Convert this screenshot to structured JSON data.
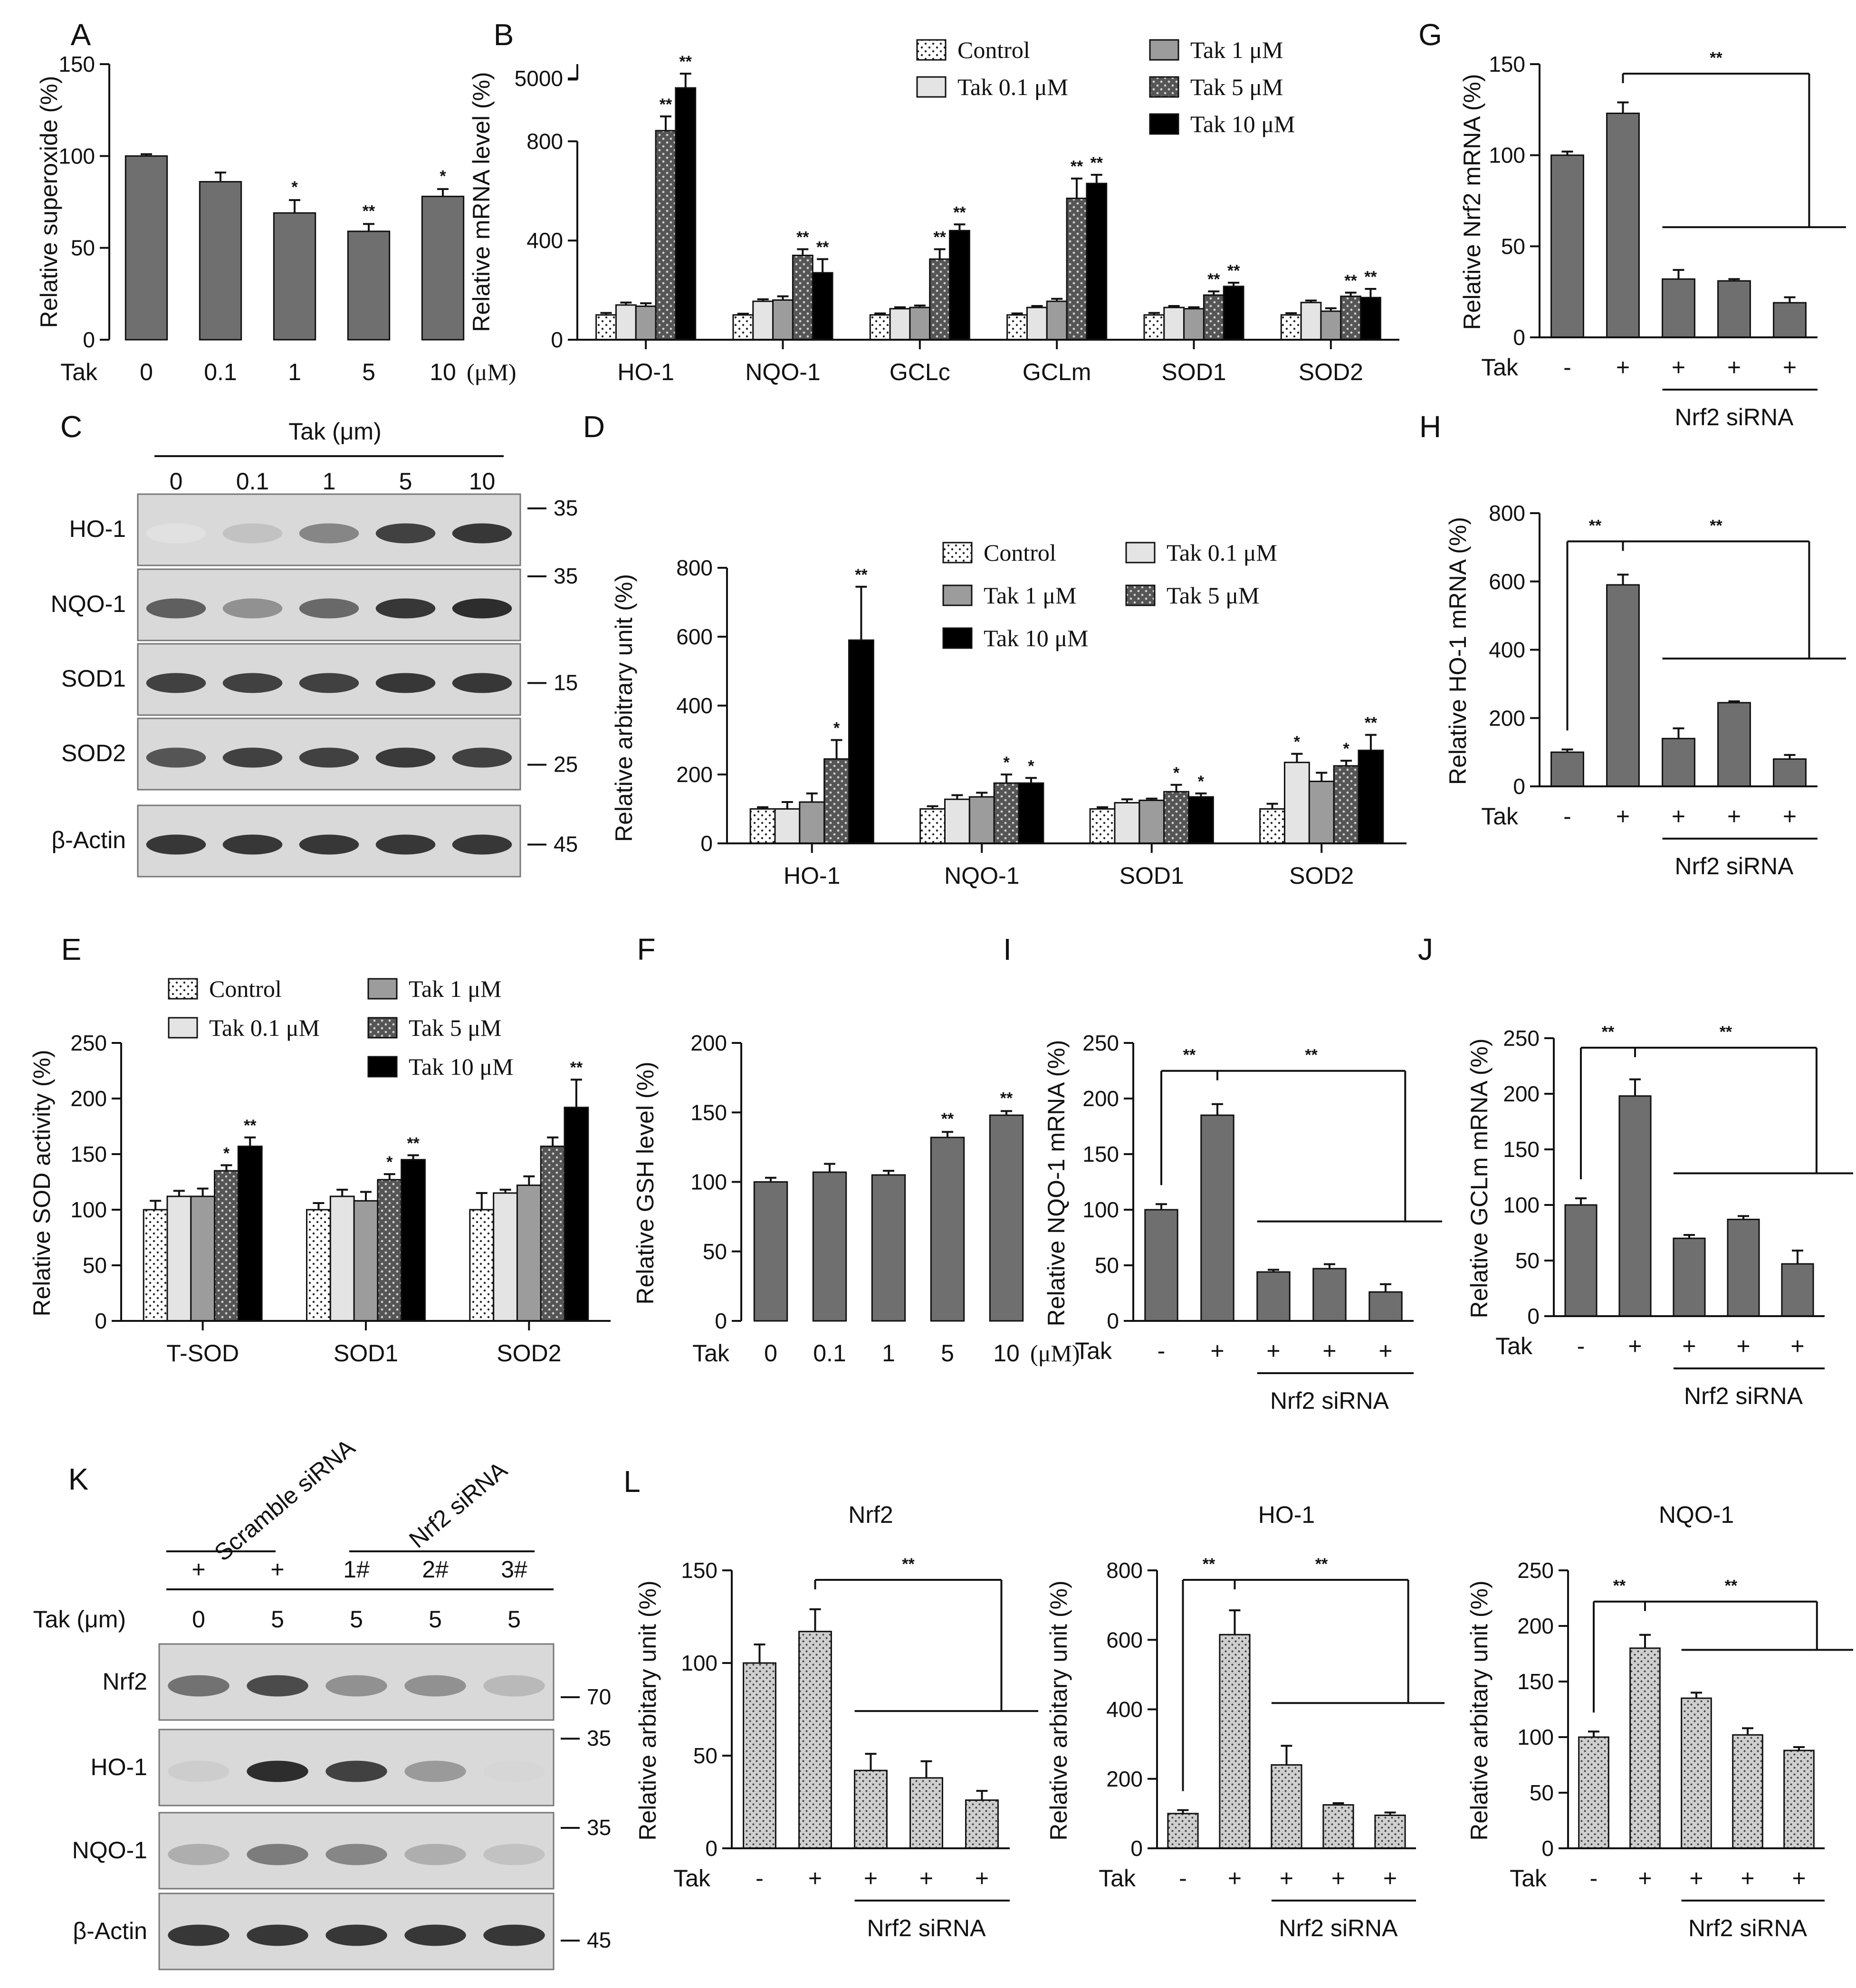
{
  "colors": {
    "control": "#ffffff",
    "t01": "#e4e4e4",
    "t1": "#9c9c9c",
    "t5": "#5a5a5a",
    "t10": "#000000",
    "grey": "#6f6f6f",
    "lgrey": "#bdbdbd",
    "line": "#111111"
  },
  "legend": {
    "control": "Control",
    "t01": "Tak 0.1 μM",
    "t1": "Tak 1 μM",
    "t5": "Tak 5 μM",
    "t10": "Tak 10 μM"
  },
  "common": {
    "tak": "Tak",
    "plus": "+",
    "minus": "-",
    "nrf2sirna": "Nrf2 siRNA",
    "uM": "(μM)",
    "tak_um": "Tak (μm)",
    "sig1": "*",
    "sig2": "**"
  },
  "chart_data": [
    {
      "id": "A",
      "type": "bar",
      "panel": "A",
      "ylabel": "Relative superoxide (%)",
      "ylim": [
        0,
        150
      ],
      "yticks": [
        0,
        50,
        100,
        150
      ],
      "categories": [
        "0",
        "0.1",
        "1",
        "5",
        "10"
      ],
      "values": [
        100,
        86,
        69,
        59,
        78
      ],
      "errors": [
        1,
        5,
        7,
        4,
        4
      ],
      "sig": [
        "",
        "",
        "*",
        "**",
        "*"
      ],
      "xcaption": "Tak",
      "unit": "(μM)"
    },
    {
      "id": "B",
      "type": "bar",
      "panel": "B",
      "ylabel": "Relative mRNA level (%)",
      "broken_axis": {
        "lower": [
          0,
          800
        ],
        "upper_tick": 5000
      },
      "yticks": [
        0,
        400,
        800,
        5000
      ],
      "categories": [
        "HO-1",
        "NQO-1",
        "GCLc",
        "GCLm",
        "SOD1",
        "SOD2"
      ],
      "series": [
        {
          "name": "Control",
          "values": [
            100,
            100,
            100,
            100,
            100,
            100
          ],
          "errors": [
            8,
            5,
            6,
            6,
            8,
            7
          ],
          "sig": [
            "",
            "",
            "",
            "",
            "",
            ""
          ]
        },
        {
          "name": "Tak 0.1 μM",
          "values": [
            140,
            155,
            125,
            130,
            130,
            150
          ],
          "errors": [
            10,
            8,
            6,
            6,
            6,
            8
          ],
          "sig": [
            "",
            "",
            "",
            "",
            "",
            ""
          ]
        },
        {
          "name": "Tak 1 μM",
          "values": [
            135,
            160,
            130,
            155,
            125,
            115
          ],
          "errors": [
            12,
            15,
            8,
            10,
            6,
            12
          ],
          "sig": [
            "",
            "",
            "",
            "",
            "",
            ""
          ]
        },
        {
          "name": "Tak 5 μM",
          "values": [
            4200,
            340,
            325,
            570,
            180,
            175
          ],
          "errors": [
            200,
            25,
            40,
            80,
            15,
            15
          ],
          "sig": [
            "**",
            "**",
            "**",
            "**",
            "**",
            "**"
          ]
        },
        {
          "name": "Tak 10 μM",
          "values": [
            4700,
            270,
            440,
            630,
            215,
            170
          ],
          "errors": [
            150,
            55,
            25,
            35,
            15,
            35
          ],
          "sig": [
            "**",
            "**",
            "**",
            "**",
            "**",
            "**"
          ]
        }
      ]
    },
    {
      "id": "D",
      "type": "bar",
      "panel": "D",
      "ylabel": "Relative arbitrary unit (%)",
      "ylim": [
        0,
        800
      ],
      "yticks": [
        0,
        200,
        400,
        600,
        800
      ],
      "categories": [
        "HO-1",
        "NQO-1",
        "SOD1",
        "SOD2"
      ],
      "series": [
        {
          "name": "Control",
          "values": [
            100,
            100,
            100,
            100
          ],
          "errors": [
            5,
            8,
            5,
            15
          ],
          "sig": [
            "",
            "",
            "",
            ""
          ]
        },
        {
          "name": "Tak 0.1 μM",
          "values": [
            100,
            128,
            118,
            235
          ],
          "errors": [
            20,
            12,
            10,
            25
          ],
          "sig": [
            "",
            "",
            "",
            "*"
          ]
        },
        {
          "name": "Tak 1 μM",
          "values": [
            120,
            135,
            125,
            180
          ],
          "errors": [
            25,
            12,
            5,
            25
          ],
          "sig": [
            "",
            "",
            "",
            ""
          ]
        },
        {
          "name": "Tak 5 μM",
          "values": [
            245,
            175,
            150,
            225
          ],
          "errors": [
            55,
            25,
            20,
            15
          ],
          "sig": [
            "*",
            "*",
            "*",
            "*"
          ]
        },
        {
          "name": "Tak 10 μM",
          "values": [
            590,
            175,
            135,
            270
          ],
          "errors": [
            155,
            15,
            10,
            45
          ],
          "sig": [
            "**",
            "*",
            "*",
            "**"
          ]
        }
      ]
    },
    {
      "id": "E",
      "type": "bar",
      "panel": "E",
      "ylabel": "Relative SOD activity (%)",
      "ylim": [
        0,
        250
      ],
      "yticks": [
        0,
        50,
        100,
        150,
        200,
        250
      ],
      "categories": [
        "T-SOD",
        "SOD1",
        "SOD2"
      ],
      "series": [
        {
          "name": "Control",
          "values": [
            100,
            100,
            100
          ],
          "errors": [
            8,
            6,
            15
          ],
          "sig": [
            "",
            "",
            ""
          ]
        },
        {
          "name": "Tak 0.1 μM",
          "values": [
            112,
            112,
            115
          ],
          "errors": [
            5,
            6,
            3
          ],
          "sig": [
            "",
            "",
            ""
          ]
        },
        {
          "name": "Tak 1 μM",
          "values": [
            112,
            108,
            122
          ],
          "errors": [
            7,
            8,
            8
          ],
          "sig": [
            "",
            "",
            ""
          ]
        },
        {
          "name": "Tak 5 μM",
          "values": [
            135,
            127,
            157
          ],
          "errors": [
            5,
            5,
            8
          ],
          "sig": [
            "*",
            "*",
            ""
          ]
        },
        {
          "name": "Tak 10 μM",
          "values": [
            157,
            145,
            192
          ],
          "errors": [
            8,
            4,
            25
          ],
          "sig": [
            "**",
            "**",
            "**"
          ]
        }
      ]
    },
    {
      "id": "F",
      "type": "bar",
      "panel": "F",
      "ylabel": "Relative GSH level (%)",
      "ylim": [
        0,
        200
      ],
      "yticks": [
        0,
        50,
        100,
        150,
        200
      ],
      "categories": [
        "0",
        "0.1",
        "1",
        "5",
        "10"
      ],
      "values": [
        100,
        107,
        105,
        132,
        148
      ],
      "errors": [
        3,
        6,
        3,
        4,
        3
      ],
      "sig": [
        "",
        "",
        "",
        "**",
        "**"
      ],
      "xcaption": "Tak",
      "unit": "(μM)"
    },
    {
      "id": "G",
      "type": "bar",
      "panel": "G",
      "ylabel": "Relative Nrf2 mRNA (%)",
      "ylim": [
        0,
        150
      ],
      "yticks": [
        0,
        50,
        100,
        150
      ],
      "categories": [
        "-",
        "+",
        "+",
        "+",
        "+"
      ],
      "values": [
        100,
        123,
        32,
        31,
        19
      ],
      "errors": [
        2,
        6,
        5,
        1,
        3
      ],
      "sig_brackets": [
        {
          "label": "**",
          "type": "group"
        }
      ]
    },
    {
      "id": "H",
      "type": "bar",
      "panel": "H",
      "ylabel": "Relative HO-1 mRNA (%)",
      "ylim": [
        0,
        800
      ],
      "yticks": [
        0,
        200,
        400,
        600,
        800
      ],
      "categories": [
        "-",
        "+",
        "+",
        "+",
        "+"
      ],
      "values": [
        100,
        590,
        140,
        245,
        80
      ],
      "errors": [
        8,
        30,
        30,
        4,
        12
      ],
      "sig_brackets": [
        {
          "label": "**",
          "type": "pair"
        },
        {
          "label": "**",
          "type": "group"
        }
      ]
    },
    {
      "id": "I",
      "type": "bar",
      "panel": "I",
      "ylabel": "Relative NQO-1 mRNA (%)",
      "ylim": [
        0,
        250
      ],
      "yticks": [
        0,
        50,
        100,
        150,
        200,
        250
      ],
      "categories": [
        "-",
        "+",
        "+",
        "+",
        "+"
      ],
      "values": [
        100,
        185,
        44,
        47,
        26
      ],
      "errors": [
        5,
        10,
        2,
        4,
        7
      ],
      "sig_brackets": [
        {
          "label": "**",
          "type": "pair"
        },
        {
          "label": "**",
          "type": "group"
        }
      ]
    },
    {
      "id": "J",
      "type": "bar",
      "panel": "J",
      "ylabel": "Relative GCLm mRNA (%)",
      "ylim": [
        0,
        250
      ],
      "yticks": [
        0,
        50,
        100,
        150,
        200,
        250
      ],
      "categories": [
        "-",
        "+",
        "+",
        "+",
        "+"
      ],
      "values": [
        100,
        198,
        70,
        87,
        47
      ],
      "errors": [
        6,
        15,
        3,
        3,
        12
      ],
      "sig_brackets": [
        {
          "label": "**",
          "type": "pair"
        },
        {
          "label": "**",
          "type": "group"
        }
      ]
    },
    {
      "id": "L1",
      "type": "bar",
      "panel": "L",
      "title": "Nrf2",
      "ylabel": "Relative arbitary unit (%)",
      "ylim": [
        0,
        150
      ],
      "yticks": [
        0,
        50,
        100,
        150
      ],
      "categories": [
        "-",
        "+",
        "+",
        "+",
        "+"
      ],
      "values": [
        100,
        117,
        42,
        38,
        26
      ],
      "errors": [
        10,
        12,
        9,
        9,
        5
      ],
      "sig_brackets": [
        {
          "label": "**",
          "type": "group"
        }
      ]
    },
    {
      "id": "L2",
      "type": "bar",
      "panel": "",
      "title": "HO-1",
      "ylabel": "Relative arbitary unit (%)",
      "ylim": [
        0,
        800
      ],
      "yticks": [
        0,
        200,
        400,
        600,
        800
      ],
      "categories": [
        "-",
        "+",
        "+",
        "+",
        "+"
      ],
      "values": [
        100,
        615,
        240,
        125,
        95
      ],
      "errors": [
        10,
        70,
        55,
        5,
        8
      ],
      "sig_brackets": [
        {
          "label": "**",
          "type": "pair"
        },
        {
          "label": "**",
          "type": "group"
        }
      ]
    },
    {
      "id": "L3",
      "type": "bar",
      "panel": "",
      "title": "NQO-1",
      "ylabel": "Relative arbitary unit (%)",
      "ylim": [
        0,
        250
      ],
      "yticks": [
        0,
        50,
        100,
        150,
        200,
        250
      ],
      "categories": [
        "-",
        "+",
        "+",
        "+",
        "+"
      ],
      "values": [
        100,
        180,
        135,
        102,
        88
      ],
      "errors": [
        5,
        12,
        5,
        6,
        3
      ],
      "sig_brackets": [
        {
          "label": "**",
          "type": "pair"
        },
        {
          "label": "**",
          "type": "group"
        }
      ]
    }
  ],
  "blotC": {
    "panel": "C",
    "header": "Tak (μm)",
    "lanes": [
      "0",
      "0.1",
      "1",
      "5",
      "10"
    ],
    "rows": [
      {
        "label": "HO-1",
        "mw": "35",
        "intensity": [
          0.05,
          0.2,
          0.5,
          0.85,
          0.9
        ]
      },
      {
        "label": "NQO-1",
        "mw": "35",
        "intensity": [
          0.7,
          0.45,
          0.65,
          0.9,
          0.95
        ]
      },
      {
        "label": "SOD1",
        "mw": "15",
        "intensity": [
          0.85,
          0.85,
          0.85,
          0.9,
          0.9
        ]
      },
      {
        "label": "SOD2",
        "mw": "25",
        "intensity": [
          0.75,
          0.85,
          0.85,
          0.88,
          0.85
        ]
      },
      {
        "label": "β-Actin",
        "mw": "45",
        "intensity": [
          0.9,
          0.9,
          0.9,
          0.9,
          0.9
        ]
      }
    ]
  },
  "blotK": {
    "panel": "K",
    "group1": "Scramble siRNA",
    "group2": "Nrf2 siRNA",
    "marks": [
      "+",
      "+",
      "1#",
      "2#",
      "3#"
    ],
    "tak_label": "Tak (μm)",
    "lanes": [
      "0",
      "5",
      "5",
      "5",
      "5"
    ],
    "rows": [
      {
        "label": "Nrf2",
        "mw": "70",
        "intensity": [
          0.6,
          0.8,
          0.45,
          0.45,
          0.25
        ]
      },
      {
        "label": "HO-1",
        "mw": "35",
        "intensity": [
          0.15,
          0.95,
          0.85,
          0.4,
          0.1
        ]
      },
      {
        "label": "NQO-1",
        "mw": "35",
        "intensity": [
          0.3,
          0.55,
          0.5,
          0.3,
          0.2
        ]
      },
      {
        "label": "β-Actin",
        "mw": "45",
        "intensity": [
          0.9,
          0.9,
          0.9,
          0.9,
          0.9
        ]
      }
    ]
  }
}
